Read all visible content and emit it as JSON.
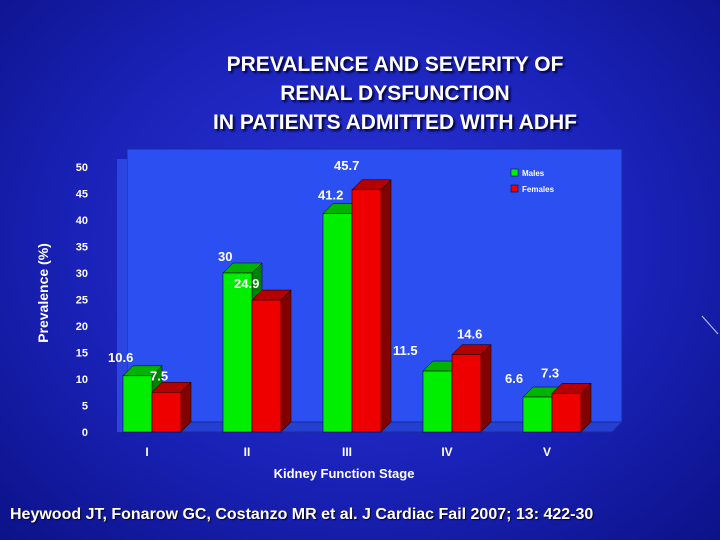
{
  "title": {
    "line1": "PREVALENCE AND SEVERITY OF",
    "line2": "RENAL DYSFUNCTION",
    "line3": "IN PATIENTS ADMITTED WITH ADHF"
  },
  "citation": "Heywood JT, Fonarow GC, Costanzo MR et al. J Cardiac Fail 2007; 13: 422-30",
  "colors": {
    "males": "#00ee00",
    "females": "#ee0000",
    "plot_bg": "#2b4ff0",
    "text": "#ffffff"
  },
  "chart_data": {
    "type": "bar",
    "title": "PREVALENCE AND SEVERITY OF RENAL DYSFUNCTION IN PATIENTS ADMITTED WITH ADHF",
    "xlabel": "Kidney Function Stage",
    "ylabel": "Prevalence (%)",
    "ylim": [
      0,
      50
    ],
    "yticks": [
      "0",
      "5",
      "10",
      "15",
      "20",
      "25",
      "30",
      "35",
      "40",
      "45",
      "50"
    ],
    "categories": [
      "I",
      "II",
      "III",
      "IV",
      "V"
    ],
    "series": [
      {
        "name": "Males",
        "values": [
          10.6,
          30,
          41.2,
          11.5,
          6.6
        ],
        "labels": [
          "10.6",
          "30",
          "41.2",
          "11.5",
          "6.6"
        ]
      },
      {
        "name": "Females",
        "values": [
          7.5,
          24.9,
          45.7,
          14.6,
          7.3
        ],
        "labels": [
          "7.5",
          "24.9",
          "45.7",
          "14.6",
          "7.3"
        ]
      }
    ],
    "legend_position": "top-right",
    "grid": false,
    "style": "3d"
  }
}
